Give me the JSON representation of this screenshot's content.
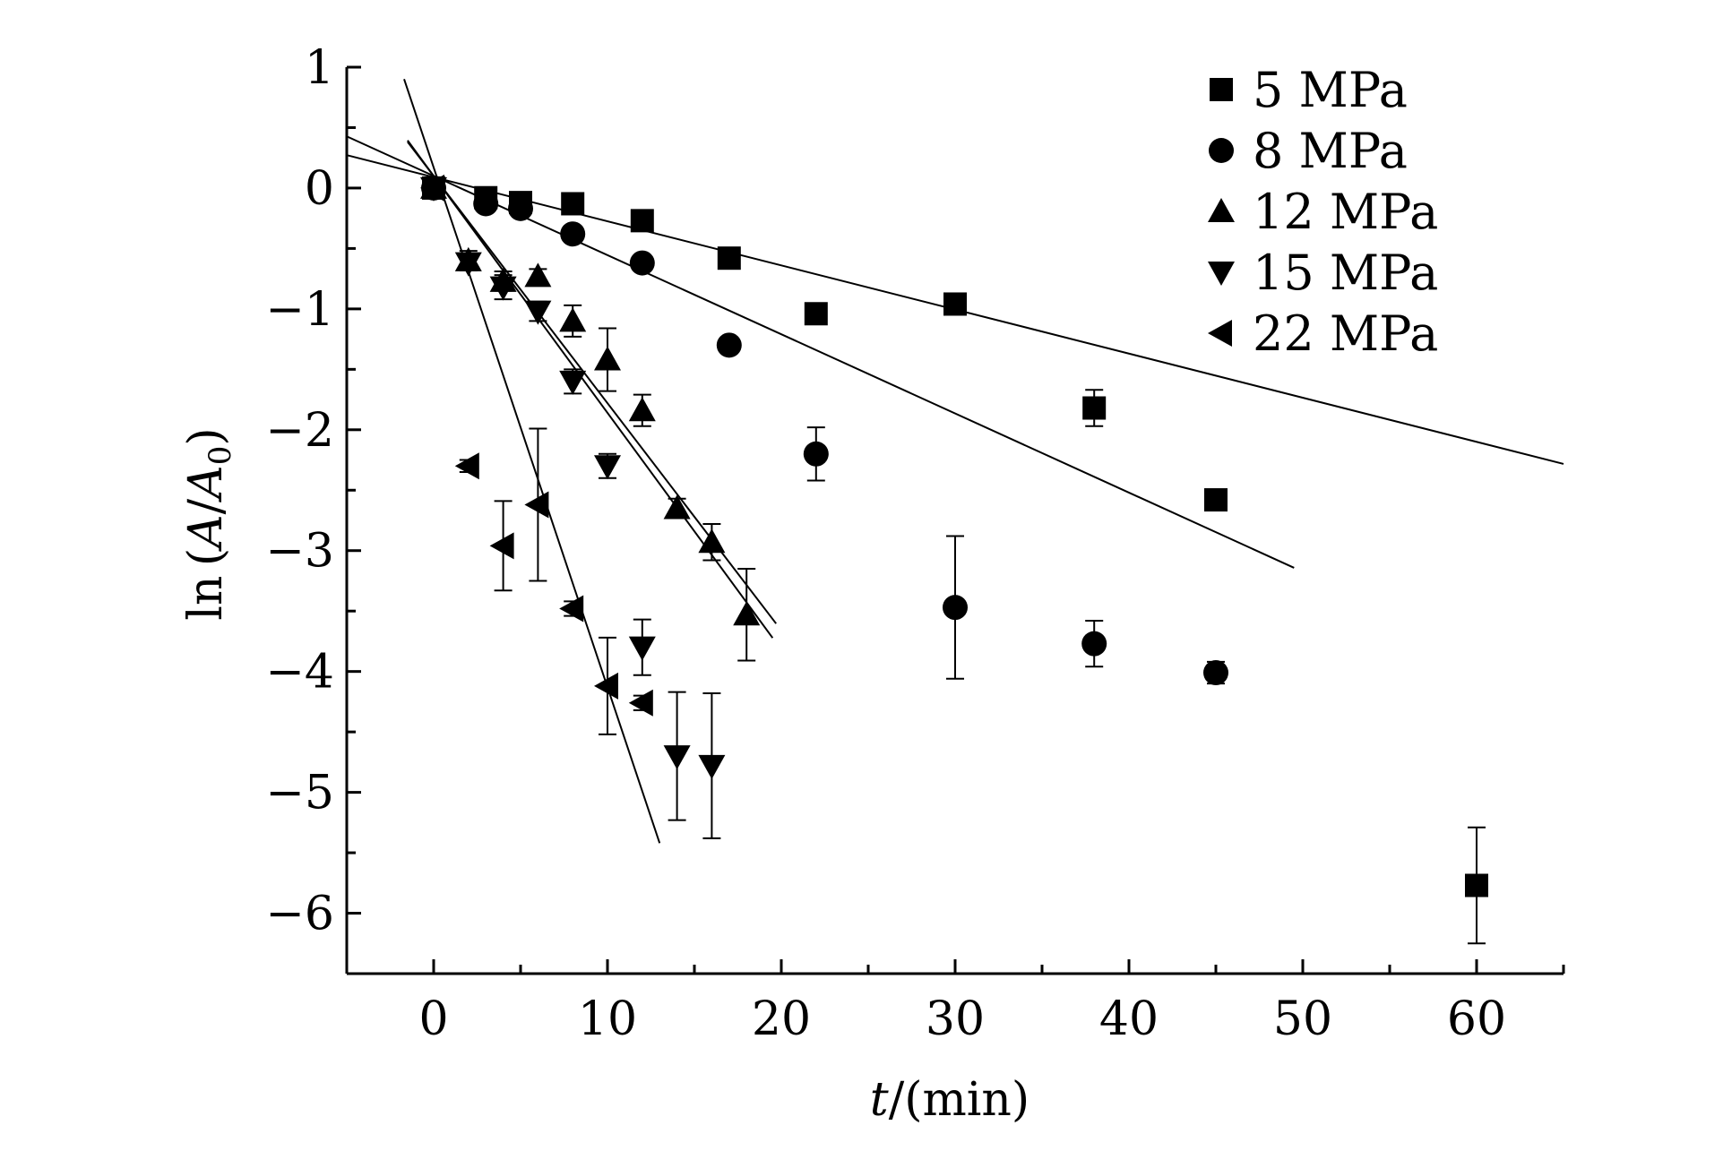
{
  "chart_data": {
    "type": "scatter",
    "title": "",
    "xlabel": {
      "italic": "t",
      "rest": "/(min)"
    },
    "ylabel": {
      "pre": "ln (",
      "A1": "A",
      "slash": "/",
      "A2": "A",
      "sub": "0",
      "post": ")"
    },
    "xlim": [
      -5,
      65
    ],
    "ylim": [
      -6.5,
      1
    ],
    "x_ticks": [
      0,
      10,
      20,
      30,
      40,
      50,
      60
    ],
    "y_ticks": [
      1,
      0,
      -1,
      -2,
      -3,
      -4,
      -5,
      -6
    ],
    "x_tick_labels": [
      "0",
      "10",
      "20",
      "30",
      "40",
      "50",
      "60"
    ],
    "y_tick_labels": [
      "1",
      "0",
      "−1",
      "−2",
      "−3",
      "−4",
      "−5",
      "−6"
    ],
    "legend_position": "top-right",
    "grid": false,
    "series": [
      {
        "name": "5 MPa",
        "marker": "square",
        "x": [
          0,
          3,
          5,
          8,
          12,
          17,
          22,
          30,
          38,
          45,
          60
        ],
        "y": [
          0,
          -0.08,
          -0.12,
          -0.13,
          -0.27,
          -0.58,
          -1.04,
          -0.96,
          -1.82,
          -2.58,
          -5.77
        ],
        "err": [
          0.05,
          0.05,
          0.04,
          0.04,
          0.05,
          0.06,
          0.05,
          0.04,
          0.15,
          0.06,
          0.48
        ],
        "fit": {
          "slope": -0.0365,
          "intercept": 0.09,
          "x_range": [
            -5,
            65
          ]
        }
      },
      {
        "name": "8 MPa",
        "marker": "circle",
        "x": [
          0,
          3,
          5,
          8,
          12,
          17,
          22,
          30,
          38,
          45
        ],
        "y": [
          0,
          -0.13,
          -0.17,
          -0.38,
          -0.62,
          -1.3,
          -2.2,
          -3.47,
          -3.77,
          -4.01
        ],
        "err": [
          0.05,
          0.05,
          0.06,
          0.05,
          0.06,
          0.05,
          0.22,
          0.59,
          0.19,
          0.09
        ],
        "fit": {
          "slope": -0.0655,
          "intercept": 0.1,
          "x_range": [
            -5,
            49.5
          ]
        }
      },
      {
        "name": "12 MPa",
        "marker": "triangle-up",
        "x": [
          0,
          2,
          4,
          6,
          8,
          10,
          12,
          14,
          16,
          18
        ],
        "y": [
          0,
          -0.6,
          -0.77,
          -0.73,
          -1.1,
          -1.42,
          -1.84,
          -2.65,
          -2.93,
          -3.53
        ],
        "err": [
          0.05,
          0.08,
          0.08,
          0.06,
          0.13,
          0.26,
          0.13,
          0.08,
          0.15,
          0.38
        ],
        "fit": {
          "slope": -0.188,
          "intercept": 0.1,
          "x_range": [
            -1.5,
            19.7
          ]
        }
      },
      {
        "name": "15 MPa",
        "marker": "triangle-down",
        "x": [
          0,
          2,
          4,
          6,
          8,
          10,
          12,
          14,
          16
        ],
        "y": [
          0,
          -0.62,
          -0.82,
          -1.02,
          -1.6,
          -2.3,
          -3.8,
          -4.7,
          -4.78
        ],
        "err": [
          0.05,
          0.06,
          0.1,
          0.08,
          0.1,
          0.1,
          0.23,
          0.53,
          0.6
        ],
        "fit": {
          "slope": -0.196,
          "intercept": 0.1,
          "x_range": [
            -1.5,
            19.5
          ]
        }
      },
      {
        "name": "22 MPa",
        "marker": "triangle-left",
        "x": [
          0,
          2,
          4,
          6,
          8,
          10,
          12
        ],
        "y": [
          0,
          -2.3,
          -2.96,
          -2.62,
          -3.48,
          -4.12,
          -4.26
        ],
        "err": [
          0.05,
          0.05,
          0.37,
          0.63,
          0.06,
          0.4,
          0.06
        ],
        "fit": {
          "slope": -0.43,
          "intercept": 0.17,
          "x_range": [
            -1.7,
            13.0
          ]
        }
      }
    ]
  }
}
